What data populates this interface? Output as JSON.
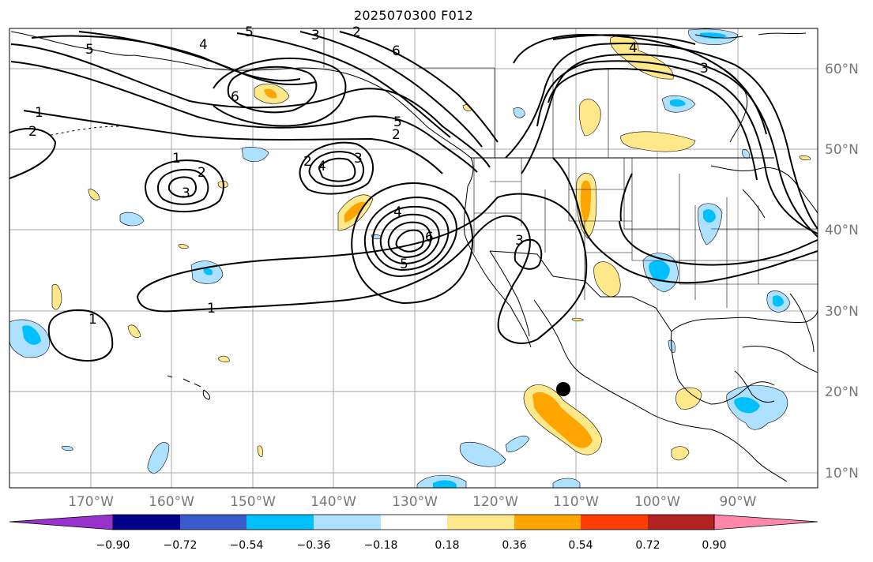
{
  "title": "2025070300 F012",
  "map": {
    "lon_labels": [
      "170°W",
      "160°W",
      "150°W",
      "140°W",
      "130°W",
      "120°W",
      "110°W",
      "100°W",
      "90°W"
    ],
    "lat_labels": [
      "60°N",
      "50°N",
      "40°N",
      "30°N",
      "20°N",
      "10°N"
    ],
    "contour_labels": [
      "1",
      "2",
      "3",
      "4",
      "5",
      "6"
    ],
    "marker": "storm-center-dot"
  },
  "colorbar": {
    "ticks": [
      "−0.90",
      "−0.72",
      "−0.54",
      "−0.36",
      "−0.18",
      "0.18",
      "0.36",
      "0.54",
      "0.72",
      "0.90"
    ],
    "colors": [
      "#9932cc",
      "#00008b",
      "#3a5bcc",
      "#00bfff",
      "#aee0ff",
      "#ffffff",
      "#ffe88a",
      "#ffa500",
      "#ff3c00",
      "#b22222",
      "#ff88aa"
    ]
  }
}
